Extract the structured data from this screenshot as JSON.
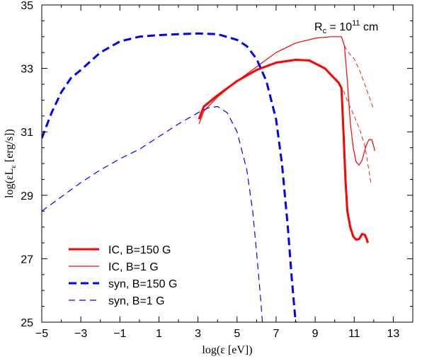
{
  "chart_data": {
    "type": "line",
    "xlabel": "log(ε [eV])",
    "ylabel": "log(εL",
    "ylabel_sub": "ε",
    "ylabel_tail": " [erg/s])",
    "xlim": [
      -5,
      14
    ],
    "ylim": [
      25,
      35
    ],
    "xticks": [
      -5,
      -3,
      -1,
      1,
      3,
      5,
      7,
      9,
      11,
      13
    ],
    "yticks": [
      25,
      27,
      29,
      31,
      33,
      35
    ],
    "annotation": {
      "prefix": "R",
      "sub": "c",
      "mid": " = 10",
      "sup": "11",
      "suffix": " cm"
    },
    "series": [
      {
        "name": "IC, B=150 G",
        "color": "#ff0000",
        "width": 3,
        "dash": "",
        "points": [
          [
            3.05,
            31.4
          ],
          [
            3.3,
            31.8
          ],
          [
            4.0,
            32.15
          ],
          [
            5.0,
            32.6
          ],
          [
            6.0,
            32.95
          ],
          [
            7.0,
            33.18
          ],
          [
            8.0,
            33.27
          ],
          [
            8.7,
            33.25
          ],
          [
            9.5,
            33.0
          ],
          [
            10.2,
            32.55
          ],
          [
            10.35,
            32.38
          ],
          [
            10.45,
            31.0
          ],
          [
            10.55,
            29.5
          ],
          [
            10.65,
            28.5
          ],
          [
            10.8,
            28.0
          ],
          [
            10.95,
            27.7
          ],
          [
            11.1,
            27.6
          ],
          [
            11.25,
            27.62
          ],
          [
            11.4,
            27.78
          ],
          [
            11.55,
            27.75
          ],
          [
            11.65,
            27.6
          ],
          [
            11.7,
            27.5
          ]
        ]
      },
      {
        "name": "IC, B=1 G",
        "color": "#ff0000",
        "width": 1.2,
        "dash": "",
        "points": [
          [
            3.05,
            31.25
          ],
          [
            3.3,
            31.65
          ],
          [
            4.0,
            32.1
          ],
          [
            5.0,
            32.6
          ],
          [
            6.0,
            33.05
          ],
          [
            7.0,
            33.5
          ],
          [
            8.0,
            33.8
          ],
          [
            9.0,
            33.95
          ],
          [
            9.8,
            34.0
          ],
          [
            10.35,
            34.0
          ],
          [
            10.5,
            33.7
          ],
          [
            10.65,
            32.6
          ],
          [
            10.8,
            31.3
          ],
          [
            10.95,
            30.5
          ],
          [
            11.1,
            30.05
          ],
          [
            11.25,
            29.95
          ],
          [
            11.4,
            30.1
          ],
          [
            11.6,
            30.55
          ],
          [
            11.75,
            30.75
          ],
          [
            11.9,
            30.75
          ],
          [
            12.0,
            30.55
          ],
          [
            12.05,
            30.4
          ]
        ]
      },
      {
        "name": "IC, B=1 G (extension)",
        "color": "#ff0000",
        "width": 0.9,
        "dash": "6,4",
        "points": [
          [
            10.5,
            33.7
          ],
          [
            10.7,
            33.5
          ],
          [
            11.0,
            33.3
          ],
          [
            11.3,
            32.9
          ],
          [
            11.6,
            32.4
          ],
          [
            11.8,
            32.05
          ],
          [
            12.0,
            31.7
          ]
        ]
      },
      {
        "name": "IC, B=1 G (extension 2)",
        "color": "#ff0000",
        "width": 0.9,
        "dash": "6,4",
        "points": [
          [
            10.45,
            32.3
          ],
          [
            10.7,
            31.9
          ],
          [
            11.0,
            31.5
          ],
          [
            11.3,
            31.05
          ],
          [
            11.55,
            30.55
          ],
          [
            11.75,
            29.8
          ],
          [
            11.85,
            29.4
          ]
        ]
      },
      {
        "name": "syn, B=150 G",
        "color": "#0000ff",
        "width": 3,
        "dash": "11,6",
        "points": [
          [
            -5.0,
            30.8
          ],
          [
            -4.5,
            31.6
          ],
          [
            -4.0,
            32.25
          ],
          [
            -3.5,
            32.7
          ],
          [
            -3.0,
            32.95
          ],
          [
            -2.0,
            33.5
          ],
          [
            -1.0,
            33.85
          ],
          [
            0.0,
            34.0
          ],
          [
            1.0,
            34.05
          ],
          [
            2.0,
            34.08
          ],
          [
            3.0,
            34.1
          ],
          [
            4.0,
            34.08
          ],
          [
            5.0,
            33.9
          ],
          [
            5.5,
            33.7
          ],
          [
            6.0,
            33.3
          ],
          [
            6.5,
            32.6
          ],
          [
            7.0,
            31.4
          ],
          [
            7.3,
            30.0
          ],
          [
            7.6,
            28.0
          ],
          [
            7.8,
            26.4
          ],
          [
            8.0,
            25.0
          ]
        ]
      },
      {
        "name": "syn, B=1 G",
        "color": "#0000ff",
        "width": 1.2,
        "dash": "9,6",
        "points": [
          [
            -5.0,
            28.5
          ],
          [
            -4.0,
            28.95
          ],
          [
            -3.0,
            29.4
          ],
          [
            -2.0,
            29.8
          ],
          [
            -1.0,
            30.15
          ],
          [
            0.0,
            30.45
          ],
          [
            1.0,
            30.85
          ],
          [
            2.0,
            31.25
          ],
          [
            3.0,
            31.6
          ],
          [
            3.5,
            31.75
          ],
          [
            4.0,
            31.8
          ],
          [
            4.5,
            31.6
          ],
          [
            5.0,
            31.0
          ],
          [
            5.5,
            29.8
          ],
          [
            5.8,
            28.5
          ],
          [
            6.0,
            27.2
          ],
          [
            6.2,
            25.8
          ],
          [
            6.3,
            25.0
          ]
        ]
      }
    ],
    "legend": [
      {
        "label": "IC, B=150 G",
        "color": "#ff0000",
        "width": 3,
        "dash": ""
      },
      {
        "label": "IC, B=1 G",
        "color": "#ff0000",
        "width": 1.2,
        "dash": ""
      },
      {
        "label": "syn, B=150 G",
        "color": "#0000ff",
        "width": 3,
        "dash": "11,6"
      },
      {
        "label": "syn, B=1 G",
        "color": "#0000ff",
        "width": 1.2,
        "dash": "9,6"
      }
    ]
  }
}
